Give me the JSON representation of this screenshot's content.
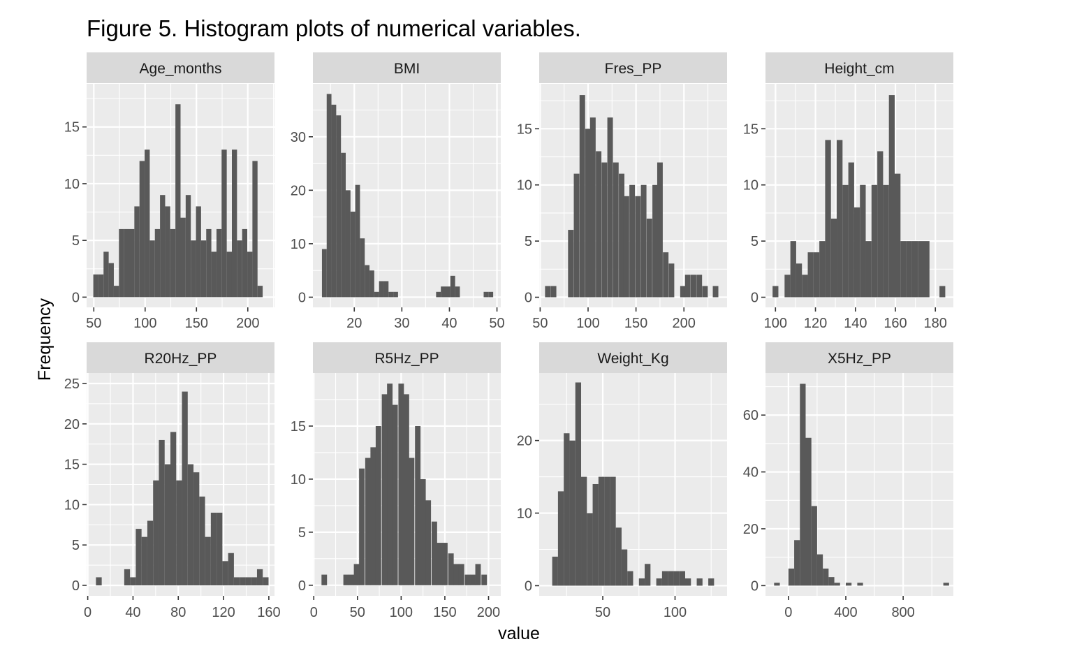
{
  "title": "Figure 5. Histogram plots of numerical variables.",
  "xlabel": "value",
  "ylabel": "Frequency",
  "colors": {
    "bar": "#595959",
    "panel": "#ebebeb",
    "strip": "#d9d9d9",
    "grid": "#ffffff",
    "tick": "#333333"
  },
  "chart_data": [
    {
      "type": "bar",
      "name": "Age_months",
      "binwidth": 5,
      "xlim": [
        43,
        226
      ],
      "ylim": [
        -0.9,
        18.8
      ],
      "xticks": [
        50,
        100,
        150,
        200
      ],
      "yticks": [
        0,
        5,
        10,
        15
      ],
      "bins": [
        [
          52,
          2
        ],
        [
          57,
          2
        ],
        [
          62,
          4
        ],
        [
          67,
          3
        ],
        [
          72,
          1
        ],
        [
          77,
          6
        ],
        [
          82,
          6
        ],
        [
          87,
          6
        ],
        [
          92,
          8
        ],
        [
          97,
          12
        ],
        [
          102,
          13
        ],
        [
          107,
          5
        ],
        [
          112,
          6
        ],
        [
          117,
          9
        ],
        [
          122,
          8
        ],
        [
          127,
          6
        ],
        [
          132,
          17
        ],
        [
          137,
          7
        ],
        [
          142,
          9
        ],
        [
          147,
          5
        ],
        [
          152,
          8
        ],
        [
          157,
          5
        ],
        [
          162,
          6
        ],
        [
          167,
          4
        ],
        [
          172,
          6
        ],
        [
          177,
          13
        ],
        [
          182,
          4
        ],
        [
          187,
          13
        ],
        [
          192,
          5
        ],
        [
          197,
          6
        ],
        [
          202,
          4
        ],
        [
          207,
          12
        ],
        [
          212,
          1
        ]
      ]
    },
    {
      "type": "bar",
      "name": "BMI",
      "binwidth": 1,
      "xlim": [
        11.3,
        50.8
      ],
      "ylim": [
        -1.9,
        39.9
      ],
      "xticks": [
        20,
        30,
        40,
        50
      ],
      "yticks": [
        0,
        10,
        20,
        30
      ],
      "bins": [
        [
          13.7,
          9
        ],
        [
          14.7,
          38
        ],
        [
          15.7,
          36
        ],
        [
          16.7,
          34
        ],
        [
          17.7,
          27
        ],
        [
          18.7,
          20
        ],
        [
          19.7,
          16
        ],
        [
          20.7,
          21
        ],
        [
          21.7,
          11
        ],
        [
          22.7,
          6
        ],
        [
          23.7,
          5
        ],
        [
          24.7,
          1
        ],
        [
          25.7,
          3
        ],
        [
          26.7,
          3
        ],
        [
          27.7,
          1
        ],
        [
          28.7,
          1
        ],
        [
          37.7,
          1
        ],
        [
          38.7,
          2
        ],
        [
          39.7,
          2
        ],
        [
          40.7,
          4
        ],
        [
          41.7,
          2
        ],
        [
          47.7,
          1
        ],
        [
          48.7,
          1
        ]
      ]
    },
    {
      "type": "bar",
      "name": "Fres_PP",
      "binwidth": 5.8,
      "xlim": [
        49,
        245
      ],
      "ylim": [
        -0.9,
        19.0
      ],
      "xticks": [
        50,
        100,
        150,
        200
      ],
      "yticks": [
        0,
        5,
        10,
        15
      ],
      "bins": [
        [
          58,
          1
        ],
        [
          64,
          1
        ],
        [
          82,
          6
        ],
        [
          88,
          11
        ],
        [
          94,
          18
        ],
        [
          100,
          15
        ],
        [
          105,
          16
        ],
        [
          111,
          13
        ],
        [
          117,
          12
        ],
        [
          123,
          16
        ],
        [
          129,
          12
        ],
        [
          135,
          11
        ],
        [
          140,
          9
        ],
        [
          146,
          10
        ],
        [
          152,
          9
        ],
        [
          158,
          10
        ],
        [
          164,
          7
        ],
        [
          170,
          10
        ],
        [
          175,
          12
        ],
        [
          181,
          4
        ],
        [
          187,
          3
        ],
        [
          199,
          1
        ],
        [
          204,
          2
        ],
        [
          210,
          2
        ],
        [
          216,
          2
        ],
        [
          222,
          1
        ],
        [
          233,
          1
        ]
      ]
    },
    {
      "type": "bar",
      "name": "Height_cm",
      "binwidth": 2.9,
      "xlim": [
        95,
        189
      ],
      "ylim": [
        -0.9,
        19.0
      ],
      "xticks": [
        100,
        120,
        140,
        160,
        180
      ],
      "yticks": [
        0,
        5,
        10,
        15
      ],
      "bins": [
        [
          100,
          1
        ],
        [
          106,
          2
        ],
        [
          108.9,
          5
        ],
        [
          111.8,
          3
        ],
        [
          114.7,
          2
        ],
        [
          117.6,
          4
        ],
        [
          120.5,
          4
        ],
        [
          123.4,
          5
        ],
        [
          126.3,
          14
        ],
        [
          129.2,
          7
        ],
        [
          132.1,
          14
        ],
        [
          135,
          10
        ],
        [
          137.9,
          12
        ],
        [
          140.8,
          8
        ],
        [
          143.7,
          10
        ],
        [
          146.6,
          5
        ],
        [
          149.5,
          10
        ],
        [
          152.4,
          13
        ],
        [
          155.3,
          10
        ],
        [
          158.2,
          18
        ],
        [
          161.1,
          11
        ],
        [
          164,
          5
        ],
        [
          166.9,
          5
        ],
        [
          169.8,
          5
        ],
        [
          172.7,
          5
        ],
        [
          175.6,
          5
        ],
        [
          183.5,
          1
        ]
      ]
    },
    {
      "type": "bar",
      "name": "R20Hz_PP",
      "binwidth": 5.1,
      "xlim": [
        -1,
        165
      ],
      "ylim": [
        -1.3,
        26.3
      ],
      "xticks": [
        0,
        40,
        80,
        120,
        160
      ],
      "yticks": [
        0,
        5,
        10,
        15,
        20,
        25
      ],
      "bins": [
        [
          9.8,
          1
        ],
        [
          34.8,
          2
        ],
        [
          39.9,
          1
        ],
        [
          45,
          7
        ],
        [
          50.1,
          6
        ],
        [
          55.2,
          8
        ],
        [
          60.3,
          13
        ],
        [
          65.4,
          18
        ],
        [
          70.5,
          15
        ],
        [
          75.6,
          19
        ],
        [
          80.7,
          13
        ],
        [
          85.8,
          24
        ],
        [
          90.9,
          15
        ],
        [
          96,
          14
        ],
        [
          101.1,
          11
        ],
        [
          106.2,
          6
        ],
        [
          111.3,
          9
        ],
        [
          116.4,
          9
        ],
        [
          121.5,
          3
        ],
        [
          126.6,
          4
        ],
        [
          131.7,
          1
        ],
        [
          136.8,
          1
        ],
        [
          141.9,
          1
        ],
        [
          147,
          1
        ],
        [
          152.1,
          2
        ],
        [
          157.2,
          1
        ]
      ]
    },
    {
      "type": "bar",
      "name": "R5Hz_PP",
      "binwidth": 6.3,
      "xlim": [
        -1,
        214
      ],
      "ylim": [
        -1.0,
        20.0
      ],
      "xticks": [
        0,
        50,
        100,
        150,
        200
      ],
      "yticks": [
        0,
        5,
        10,
        15
      ],
      "bins": [
        [
          12,
          1
        ],
        [
          37,
          1
        ],
        [
          43,
          1
        ],
        [
          49,
          2
        ],
        [
          55,
          11
        ],
        [
          62,
          12
        ],
        [
          68,
          13
        ],
        [
          74,
          15
        ],
        [
          81,
          18
        ],
        [
          87,
          19
        ],
        [
          93,
          17
        ],
        [
          100,
          19
        ],
        [
          106,
          18
        ],
        [
          112,
          12
        ],
        [
          119,
          15
        ],
        [
          125,
          10
        ],
        [
          131,
          8
        ],
        [
          138,
          6
        ],
        [
          144,
          4
        ],
        [
          150,
          4
        ],
        [
          157,
          3
        ],
        [
          163,
          2
        ],
        [
          169,
          2
        ],
        [
          176,
          1
        ],
        [
          182,
          1
        ],
        [
          188,
          2
        ],
        [
          195,
          1
        ]
      ]
    },
    {
      "type": "bar",
      "name": "Weight_Kg",
      "binwidth": 4.0,
      "xlim": [
        6,
        136
      ],
      "ylim": [
        -1.4,
        29.3
      ],
      "xticks": [
        50,
        100
      ],
      "yticks": [
        0,
        10,
        20
      ],
      "bins": [
        [
          17,
          4
        ],
        [
          21,
          13
        ],
        [
          25,
          21
        ],
        [
          29,
          20
        ],
        [
          33,
          28
        ],
        [
          37,
          15
        ],
        [
          41,
          10
        ],
        [
          45,
          14
        ],
        [
          49,
          15
        ],
        [
          53,
          15
        ],
        [
          57,
          15
        ],
        [
          61,
          8
        ],
        [
          65,
          5
        ],
        [
          69,
          2
        ],
        [
          77,
          1
        ],
        [
          81,
          3
        ],
        [
          89,
          1
        ],
        [
          93,
          2
        ],
        [
          97,
          2
        ],
        [
          101,
          2
        ],
        [
          105,
          2
        ],
        [
          109,
          1
        ],
        [
          117,
          1
        ],
        [
          125,
          1
        ]
      ]
    },
    {
      "type": "bar",
      "name": "X5Hz_PP",
      "binwidth": 40,
      "xlim": [
        -160,
        1150
      ],
      "ylim": [
        -3.6,
        74.8
      ],
      "xticks": [
        0,
        400,
        800
      ],
      "yticks": [
        0,
        20,
        40,
        60
      ],
      "bins": [
        [
          -80,
          1
        ],
        [
          20,
          6
        ],
        [
          60,
          16
        ],
        [
          100,
          71
        ],
        [
          140,
          52
        ],
        [
          180,
          28
        ],
        [
          220,
          11
        ],
        [
          260,
          6
        ],
        [
          300,
          3
        ],
        [
          340,
          1
        ],
        [
          420,
          1
        ],
        [
          500,
          1
        ],
        [
          1100,
          1
        ]
      ]
    }
  ]
}
